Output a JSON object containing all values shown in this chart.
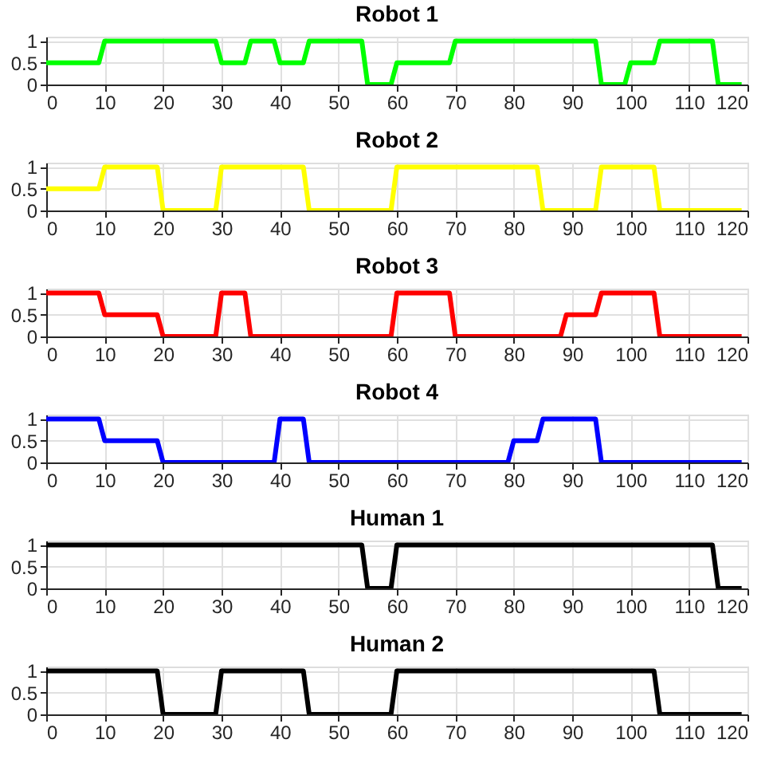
{
  "chart_data": [
    {
      "type": "line",
      "title": "Robot 1",
      "series": [
        {
          "color": "#00ff00",
          "x": [
            0,
            9,
            10,
            29,
            30,
            34,
            35,
            39,
            40,
            44,
            45,
            54,
            55,
            59,
            60,
            69,
            70,
            94,
            95,
            99,
            100,
            104,
            105,
            114,
            115,
            119
          ],
          "values": [
            0.5,
            0.5,
            1,
            1,
            0.5,
            0.5,
            1,
            1,
            0.5,
            0.5,
            1,
            1,
            0,
            0,
            0.5,
            0.5,
            1,
            1,
            0,
            0,
            0.5,
            0.5,
            1,
            1,
            0,
            0
          ]
        }
      ],
      "xlim": [
        0,
        120
      ],
      "xticks": [
        0,
        10,
        20,
        30,
        40,
        50,
        60,
        70,
        80,
        90,
        100,
        110,
        120
      ],
      "ylim": [
        0,
        1.1
      ],
      "yticks": [
        0,
        0.5,
        1
      ],
      "grid": true
    },
    {
      "type": "line",
      "title": "Robot 2",
      "series": [
        {
          "color": "#ffff00",
          "x": [
            0,
            9,
            10,
            19,
            20,
            29,
            30,
            44,
            45,
            59,
            60,
            84,
            85,
            94,
            95,
            104,
            105,
            119
          ],
          "values": [
            0.5,
            0.5,
            1,
            1,
            0,
            0,
            1,
            1,
            0,
            0,
            1,
            1,
            0,
            0,
            1,
            1,
            0,
            0
          ]
        }
      ],
      "xlim": [
        0,
        120
      ],
      "xticks": [
        0,
        10,
        20,
        30,
        40,
        50,
        60,
        70,
        80,
        90,
        100,
        110,
        120
      ],
      "ylim": [
        0,
        1.1
      ],
      "yticks": [
        0,
        0.5,
        1
      ],
      "grid": true
    },
    {
      "type": "line",
      "title": "Robot 3",
      "series": [
        {
          "color": "#ff0000",
          "x": [
            0,
            9,
            10,
            19,
            20,
            29,
            30,
            34,
            35,
            59,
            60,
            69,
            70,
            88,
            89,
            94,
            95,
            104,
            105,
            119
          ],
          "values": [
            1,
            1,
            0.5,
            0.5,
            0,
            0,
            1,
            1,
            0,
            0,
            1,
            1,
            0,
            0,
            0.5,
            0.5,
            1,
            1,
            0,
            0
          ]
        }
      ],
      "xlim": [
        0,
        120
      ],
      "xticks": [
        0,
        10,
        20,
        30,
        40,
        50,
        60,
        70,
        80,
        90,
        100,
        110,
        120
      ],
      "ylim": [
        0,
        1.1
      ],
      "yticks": [
        0,
        0.5,
        1
      ],
      "grid": true
    },
    {
      "type": "line",
      "title": "Robot 4",
      "series": [
        {
          "color": "#0000ff",
          "x": [
            0,
            9,
            10,
            19,
            20,
            39,
            40,
            44,
            45,
            79,
            80,
            84,
            85,
            94,
            95,
            119
          ],
          "values": [
            1,
            1,
            0.5,
            0.5,
            0,
            0,
            1,
            1,
            0,
            0,
            0.5,
            0.5,
            1,
            1,
            0,
            0
          ]
        }
      ],
      "xlim": [
        0,
        120
      ],
      "xticks": [
        0,
        10,
        20,
        30,
        40,
        50,
        60,
        70,
        80,
        90,
        100,
        110,
        120
      ],
      "ylim": [
        0,
        1.1
      ],
      "yticks": [
        0,
        0.5,
        1
      ],
      "grid": true
    },
    {
      "type": "line",
      "title": "Human 1",
      "series": [
        {
          "color": "#000000",
          "x": [
            0,
            54,
            55,
            59,
            60,
            114,
            115,
            119
          ],
          "values": [
            1,
            1,
            0,
            0,
            1,
            1,
            0,
            0
          ]
        }
      ],
      "xlim": [
        0,
        120
      ],
      "xticks": [
        0,
        10,
        20,
        30,
        40,
        50,
        60,
        70,
        80,
        90,
        100,
        110,
        120
      ],
      "ylim": [
        0,
        1.1
      ],
      "yticks": [
        0,
        0.5,
        1
      ],
      "grid": true
    },
    {
      "type": "line",
      "title": "Human 2",
      "series": [
        {
          "color": "#000000",
          "x": [
            0,
            19,
            20,
            29,
            30,
            44,
            45,
            59,
            60,
            104,
            105,
            119
          ],
          "values": [
            1,
            1,
            0,
            0,
            1,
            1,
            0,
            0,
            1,
            1,
            0,
            0
          ]
        }
      ],
      "xlim": [
        0,
        120
      ],
      "xticks": [
        0,
        10,
        20,
        30,
        40,
        50,
        60,
        70,
        80,
        90,
        100,
        110,
        120
      ],
      "ylim": [
        0,
        1.1
      ],
      "yticks": [
        0,
        0.5,
        1
      ],
      "grid": true
    }
  ]
}
